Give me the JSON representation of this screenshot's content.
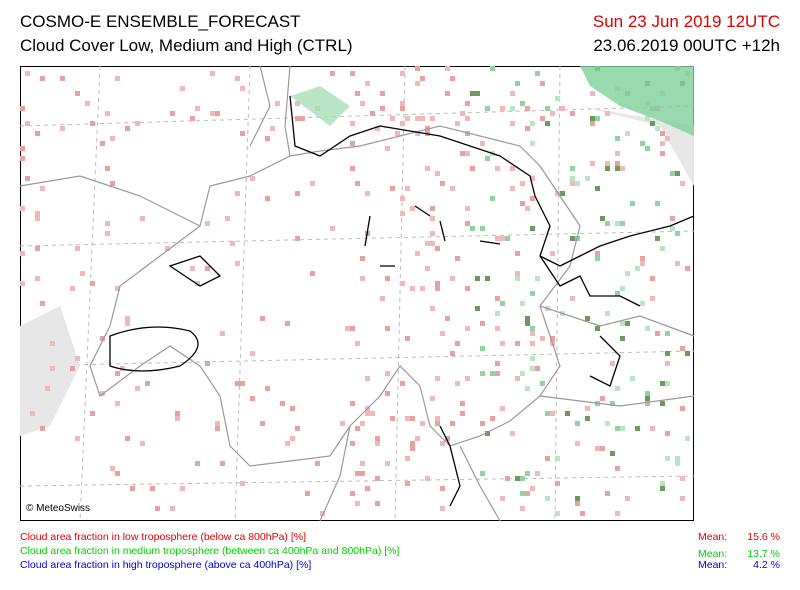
{
  "header": {
    "title": "COSMO-E ENSEMBLE_FORECAST",
    "subtitle": "Cloud Cover Low, Medium and High (CTRL)",
    "valid_time": "Sun 23 Jun 2019 12UTC",
    "run_time": "23.06.2019 00UTC +12h"
  },
  "map": {
    "copyright": "© MeteoSwiss"
  },
  "legend": [
    {
      "label": "Cloud area fraction in low troposphere (below ca 800hPa) [%]",
      "mean_label": "Mean:",
      "mean": "15.6 %"
    },
    {
      "label": "Cloud area fraction in medium troposphere (between ca 400hPa and 800hPa) [%]",
      "mean_label": "Mean:",
      "mean": "13.7 %"
    },
    {
      "label": "Cloud area fraction in high troposphere (above ca 400hPa) [%]",
      "mean_label": "Mean:",
      "mean": "4.2 %"
    }
  ]
}
